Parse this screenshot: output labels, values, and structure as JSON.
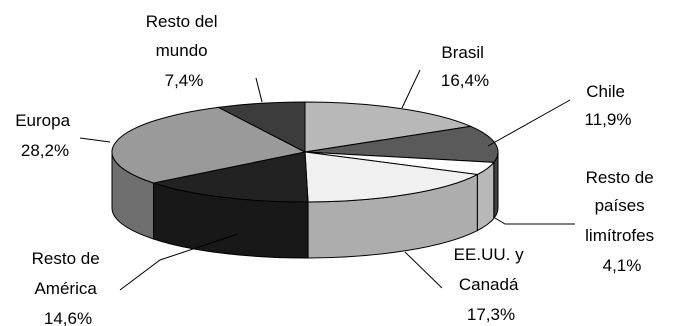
{
  "chart_data": {
    "type": "pie",
    "title": "",
    "three_d": true,
    "legend": "none",
    "slices": [
      {
        "name": "Brasil",
        "value": 16.4,
        "label": "16,4%",
        "name_lines": [
          "Brasil"
        ],
        "color": "#b8b8b8"
      },
      {
        "name": "Chile",
        "value": 11.9,
        "label": "11,9%",
        "name_lines": [
          "Chile"
        ],
        "color": "#5a5a5a"
      },
      {
        "name": "Resto de países limítrofes",
        "value": 4.1,
        "label": "4,1%",
        "name_lines": [
          "Resto de",
          "países",
          "limítrofes"
        ],
        "color": "#ffffff"
      },
      {
        "name": "EE.UU. y Canadá",
        "value": 17.3,
        "label": "17,3%",
        "name_lines": [
          "EE.UU. y",
          "Canadá"
        ],
        "color": "#f0f0f0"
      },
      {
        "name": "Resto de América",
        "value": 14.6,
        "label": "14,6%",
        "name_lines": [
          "Resto de",
          "América"
        ],
        "color": "#222222"
      },
      {
        "name": "Europa",
        "value": 28.2,
        "label": "28,2%",
        "name_lines": [
          "Europa"
        ],
        "color": "#9a9a9a"
      },
      {
        "name": "Resto del mundo",
        "value": 7.4,
        "label": "7,4%",
        "name_lines": [
          "Resto del",
          "mundo"
        ],
        "color": "#3c3c3c"
      }
    ]
  }
}
